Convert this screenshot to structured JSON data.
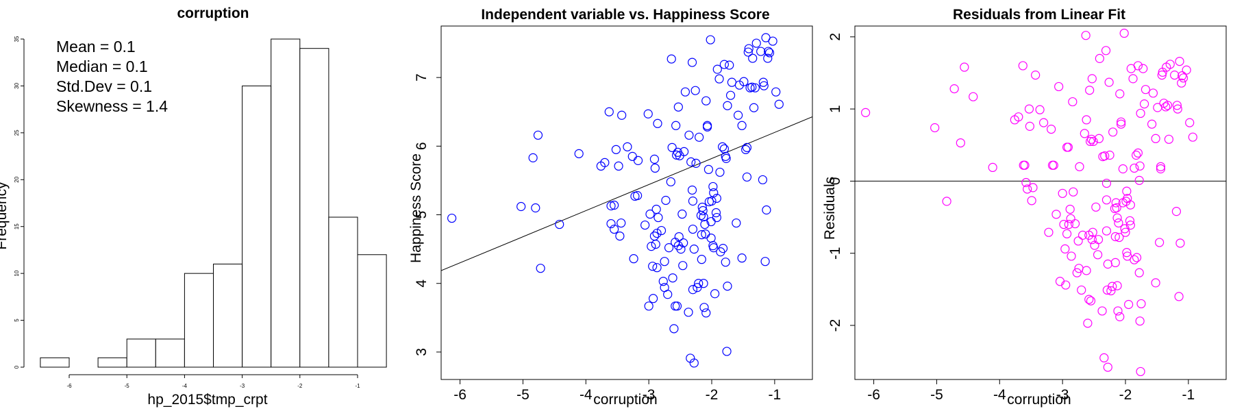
{
  "chart_data": [
    {
      "type": "bar",
      "title": "corruption",
      "xlabel": "hp_2015$tmp_crpt",
      "ylabel": "Frequency",
      "bin_edges": [
        -6.5,
        -6.0,
        -5.5,
        -5.0,
        -4.5,
        -4.0,
        -3.5,
        -3.0,
        -2.5,
        -2.0,
        -1.5,
        -1.0,
        -0.5
      ],
      "values": [
        1,
        0,
        1,
        3,
        3,
        10,
        11,
        30,
        35,
        34,
        16,
        12
      ],
      "xticks": [
        -6,
        -5,
        -4,
        -3,
        -2,
        -1
      ],
      "xtick_labels": [
        "-6",
        "-5",
        "-4",
        "-3",
        "-2",
        "-1"
      ],
      "yticks": [
        0,
        5,
        10,
        15,
        20,
        25,
        30,
        35
      ],
      "ytick_labels": [
        "0",
        "5",
        "10",
        "15",
        "20",
        "25",
        "30",
        "35"
      ],
      "ylim": [
        0,
        35
      ],
      "annotations": [
        "Mean = 0.1",
        "Median = 0.1",
        "Std.Dev = 0.1",
        "Skewness = 1.4"
      ]
    },
    {
      "type": "scatter",
      "title": "Independent variable vs. Happiness Score",
      "xlabel": "corruption",
      "ylabel": "Happiness Score",
      "xlim": [
        -6.3,
        -0.4
      ],
      "ylim": [
        2.6,
        7.75
      ],
      "xticks": [
        -6,
        -5,
        -4,
        -3,
        -2,
        -1
      ],
      "xtick_labels": [
        "-6",
        "-5",
        "-4",
        "-3",
        "-2",
        "-1"
      ],
      "yticks": [
        3,
        4,
        5,
        6,
        7
      ],
      "ytick_labels": [
        "3",
        "4",
        "5",
        "6",
        "7"
      ],
      "marker_color": "#0000ff",
      "fit_line": {
        "intercept": 6.58,
        "slope": 0.38
      },
      "points": [
        [
          -6.13,
          4.95
        ],
        [
          -5.03,
          5.12
        ],
        [
          -4.84,
          5.83
        ],
        [
          -4.8,
          5.1
        ],
        [
          -4.76,
          6.16
        ],
        [
          -4.72,
          4.22
        ],
        [
          -4.42,
          4.86
        ],
        [
          -4.11,
          5.89
        ],
        [
          -3.76,
          5.71
        ],
        [
          -3.7,
          5.76
        ],
        [
          -3.63,
          6.5
        ],
        [
          -3.6,
          5.13
        ],
        [
          -3.6,
          4.87
        ],
        [
          -3.55,
          5.14
        ],
        [
          -3.55,
          4.79
        ],
        [
          -3.52,
          5.95
        ],
        [
          -3.48,
          5.71
        ],
        [
          -3.46,
          4.69
        ],
        [
          -3.44,
          4.88
        ],
        [
          -3.43,
          6.45
        ],
        [
          -3.34,
          5.99
        ],
        [
          -3.26,
          5.85
        ],
        [
          -3.24,
          4.36
        ],
        [
          -3.22,
          5.27
        ],
        [
          -3.18,
          5.28
        ],
        [
          -3.17,
          5.79
        ],
        [
          -3.06,
          4.85
        ],
        [
          -3.01,
          6.47
        ],
        [
          -3.0,
          3.67
        ],
        [
          -2.98,
          5.01
        ],
        [
          -2.96,
          4.54
        ],
        [
          -2.94,
          4.25
        ],
        [
          -2.93,
          3.78
        ],
        [
          -2.91,
          5.81
        ],
        [
          -2.91,
          4.69
        ],
        [
          -2.9,
          5.68
        ],
        [
          -2.89,
          4.57
        ],
        [
          -2.88,
          5.08
        ],
        [
          -2.87,
          4.73
        ],
        [
          -2.87,
          4.23
        ],
        [
          -2.86,
          6.33
        ],
        [
          -2.85,
          4.96
        ],
        [
          -2.8,
          4.77
        ],
        [
          -2.77,
          4.03
        ],
        [
          -2.75,
          4.32
        ],
        [
          -2.75,
          3.94
        ],
        [
          -2.73,
          5.21
        ],
        [
          -2.7,
          3.84
        ],
        [
          -2.68,
          4.52
        ],
        [
          -2.65,
          5.48
        ],
        [
          -2.64,
          7.27
        ],
        [
          -2.63,
          5.98
        ],
        [
          -2.62,
          4.08
        ],
        [
          -2.6,
          3.34
        ],
        [
          -2.58,
          4.6
        ],
        [
          -2.58,
          3.67
        ],
        [
          -2.57,
          6.3
        ],
        [
          -2.56,
          5.87
        ],
        [
          -2.55,
          3.67
        ],
        [
          -2.54,
          5.91
        ],
        [
          -2.53,
          6.57
        ],
        [
          -2.53,
          4.55
        ],
        [
          -2.52,
          4.68
        ],
        [
          -2.51,
          5.86
        ],
        [
          -2.49,
          4.5
        ],
        [
          -2.47,
          5.01
        ],
        [
          -2.46,
          4.26
        ],
        [
          -2.45,
          4.59
        ],
        [
          -2.44,
          5.92
        ],
        [
          -2.42,
          6.79
        ],
        [
          -2.37,
          3.58
        ],
        [
          -2.36,
          6.16
        ],
        [
          -2.34,
          2.91
        ],
        [
          -2.33,
          5.77
        ],
        [
          -2.31,
          7.22
        ],
        [
          -2.31,
          5.36
        ],
        [
          -2.3,
          5.2
        ],
        [
          -2.3,
          4.79
        ],
        [
          -2.3,
          3.91
        ],
        [
          -2.28,
          2.84
        ],
        [
          -2.28,
          4.5
        ],
        [
          -2.26,
          6.81
        ],
        [
          -2.25,
          5.75
        ],
        [
          -2.23,
          3.94
        ],
        [
          -2.21,
          4.0
        ],
        [
          -2.2,
          6.13
        ],
        [
          -2.17,
          4.99
        ],
        [
          -2.16,
          4.71
        ],
        [
          -2.16,
          4.35
        ],
        [
          -2.15,
          5.11
        ],
        [
          -2.14,
          5.06
        ],
        [
          -2.13,
          4.97
        ],
        [
          -2.13,
          4.0
        ],
        [
          -2.12,
          3.65
        ],
        [
          -2.11,
          4.86
        ],
        [
          -2.1,
          4.72
        ],
        [
          -2.09,
          6.66
        ],
        [
          -2.09,
          3.57
        ],
        [
          -2.07,
          6.28
        ],
        [
          -2.07,
          6.3
        ],
        [
          -2.05,
          5.66
        ],
        [
          -2.04,
          5.19
        ],
        [
          -2.02,
          7.55
        ],
        [
          -2.01,
          4.9
        ],
        [
          -2.01,
          4.66
        ],
        [
          -2.0,
          5.2
        ],
        [
          -1.98,
          5.41
        ],
        [
          -1.98,
          4.55
        ],
        [
          -1.97,
          4.52
        ],
        [
          -1.97,
          5.32
        ],
        [
          -1.95,
          3.85
        ],
        [
          -1.93,
          5.03
        ],
        [
          -1.92,
          5.24
        ],
        [
          -1.92,
          4.96
        ],
        [
          -1.91,
          7.12
        ],
        [
          -1.88,
          6.98
        ],
        [
          -1.87,
          5.62
        ],
        [
          -1.86,
          4.46
        ],
        [
          -1.83,
          5.99
        ],
        [
          -1.82,
          4.51
        ],
        [
          -1.8,
          5.96
        ],
        [
          -1.8,
          7.19
        ],
        [
          -1.78,
          5.85
        ],
        [
          -1.78,
          4.31
        ],
        [
          -1.77,
          5.82
        ],
        [
          -1.76,
          3.01
        ],
        [
          -1.75,
          6.59
        ],
        [
          -1.75,
          3.96
        ],
        [
          -1.72,
          7.18
        ],
        [
          -1.7,
          6.74
        ],
        [
          -1.68,
          6.93
        ],
        [
          -1.61,
          4.88
        ],
        [
          -1.58,
          6.45
        ],
        [
          -1.56,
          6.89
        ],
        [
          -1.52,
          6.3
        ],
        [
          -1.52,
          4.37
        ],
        [
          -1.49,
          6.94
        ],
        [
          -1.46,
          5.95
        ],
        [
          -1.44,
          5.98
        ],
        [
          -1.44,
          5.55
        ],
        [
          -1.42,
          7.37
        ],
        [
          -1.41,
          7.42
        ],
        [
          -1.39,
          6.85
        ],
        [
          -1.36,
          6.86
        ],
        [
          -1.35,
          7.28
        ],
        [
          -1.33,
          6.56
        ],
        [
          -1.31,
          6.85
        ],
        [
          -1.29,
          7.5
        ],
        [
          -1.22,
          7.38
        ],
        [
          -1.19,
          5.51
        ],
        [
          -1.18,
          6.93
        ],
        [
          -1.17,
          6.88
        ],
        [
          -1.15,
          4.32
        ],
        [
          -1.14,
          7.58
        ],
        [
          -1.13,
          5.07
        ],
        [
          -1.11,
          7.28
        ],
        [
          -1.1,
          7.38
        ],
        [
          -1.08,
          7.36
        ],
        [
          -1.03,
          7.53
        ],
        [
          -0.98,
          6.79
        ],
        [
          -0.93,
          6.61
        ]
      ]
    },
    {
      "type": "scatter",
      "title": "Residuals from Linear Fit",
      "xlabel": "corruption",
      "ylabel": "Residuals",
      "xlim": [
        -6.3,
        -0.4
      ],
      "ylim": [
        -2.75,
        2.15
      ],
      "xticks": [
        -6,
        -5,
        -4,
        -3,
        -2,
        -1
      ],
      "xtick_labels": [
        "-6",
        "-5",
        "-4",
        "-3",
        "-2",
        "-1"
      ],
      "yticks": [
        -2,
        -1,
        0,
        1,
        2
      ],
      "ytick_labels": [
        "-2",
        "-1",
        "0",
        "1",
        "2"
      ],
      "marker_color": "#ff00ff",
      "reference_line": 0,
      "points": [
        [
          -6.13,
          0.95
        ],
        [
          -5.03,
          0.74
        ],
        [
          -4.84,
          -0.28
        ],
        [
          -4.72,
          1.28
        ],
        [
          -4.62,
          0.53
        ],
        [
          -4.56,
          1.58
        ],
        [
          -4.11,
          0.19
        ],
        [
          -4.42,
          1.17
        ],
        [
          -3.76,
          0.85
        ],
        [
          -3.7,
          0.89
        ],
        [
          -3.63,
          1.6
        ],
        [
          -3.62,
          0.22
        ],
        [
          -3.6,
          0.22
        ],
        [
          -3.58,
          -0.02
        ],
        [
          -3.56,
          -0.11
        ],
        [
          -3.53,
          1.0
        ],
        [
          -3.52,
          0.76
        ],
        [
          -3.49,
          -0.27
        ],
        [
          -3.47,
          -0.09
        ],
        [
          -3.43,
          1.47
        ],
        [
          -3.36,
          0.99
        ],
        [
          -3.3,
          0.81
        ],
        [
          -3.22,
          -0.71
        ],
        [
          -3.18,
          0.72
        ],
        [
          -3.16,
          0.22
        ],
        [
          -3.14,
          0.22
        ],
        [
          -3.1,
          -0.46
        ],
        [
          -3.06,
          1.31
        ],
        [
          -3.04,
          -1.39
        ],
        [
          -3.0,
          -0.17
        ],
        [
          -2.98,
          -0.6
        ],
        [
          -2.96,
          -0.94
        ],
        [
          -2.95,
          -1.44
        ],
        [
          -2.93,
          0.47
        ],
        [
          -2.93,
          -0.73
        ],
        [
          -2.91,
          0.47
        ],
        [
          -2.9,
          -0.6
        ],
        [
          -2.88,
          -0.39
        ],
        [
          -2.87,
          -0.52
        ],
        [
          -2.86,
          -1.04
        ],
        [
          -2.84,
          1.1
        ],
        [
          -2.83,
          -0.15
        ],
        [
          -2.8,
          -0.59
        ],
        [
          -2.77,
          -1.27
        ],
        [
          -2.75,
          -0.83
        ],
        [
          -2.74,
          -1.21
        ],
        [
          -2.73,
          0.2
        ],
        [
          -2.7,
          -1.51
        ],
        [
          -2.68,
          -0.75
        ],
        [
          -2.65,
          0.66
        ],
        [
          -2.63,
          2.02
        ],
        [
          -2.62,
          0.85
        ],
        [
          -2.62,
          -1.24
        ],
        [
          -2.6,
          -1.97
        ],
        [
          -2.58,
          -0.75
        ],
        [
          -2.58,
          -1.64
        ],
        [
          -2.57,
          1.26
        ],
        [
          -2.56,
          0.55
        ],
        [
          -2.55,
          -1.66
        ],
        [
          -2.54,
          0.58
        ],
        [
          -2.53,
          1.42
        ],
        [
          -2.53,
          -0.81
        ],
        [
          -2.52,
          -0.71
        ],
        [
          -2.51,
          0.55
        ],
        [
          -2.49,
          -0.89
        ],
        [
          -2.47,
          -0.36
        ],
        [
          -2.44,
          -1.02
        ],
        [
          -2.43,
          -0.81
        ],
        [
          -2.42,
          0.59
        ],
        [
          -2.41,
          1.7
        ],
        [
          -2.37,
          -1.8
        ],
        [
          -2.36,
          0.34
        ],
        [
          -2.34,
          -2.45
        ],
        [
          -2.33,
          0.35
        ],
        [
          -2.31,
          1.81
        ],
        [
          -2.3,
          -0.03
        ],
        [
          -2.3,
          -0.26
        ],
        [
          -2.3,
          -0.69
        ],
        [
          -2.29,
          -1.51
        ],
        [
          -2.28,
          -2.58
        ],
        [
          -2.28,
          -1.15
        ],
        [
          -2.26,
          1.37
        ],
        [
          -2.25,
          0.36
        ],
        [
          -2.23,
          -1.52
        ],
        [
          -2.21,
          -1.46
        ],
        [
          -2.2,
          0.68
        ],
        [
          -2.17,
          -0.38
        ],
        [
          -2.16,
          -0.77
        ],
        [
          -2.16,
          -1.13
        ],
        [
          -2.15,
          -0.3
        ],
        [
          -2.14,
          -0.37
        ],
        [
          -2.13,
          -0.51
        ],
        [
          -2.13,
          -1.45
        ],
        [
          -2.12,
          -1.8
        ],
        [
          -2.11,
          -0.58
        ],
        [
          -2.1,
          -0.78
        ],
        [
          -2.09,
          1.21
        ],
        [
          -2.09,
          -1.88
        ],
        [
          -2.07,
          0.82
        ],
        [
          -2.07,
          0.79
        ],
        [
          -2.04,
          0.17
        ],
        [
          -2.04,
          -0.3
        ],
        [
          -2.02,
          2.05
        ],
        [
          -2.01,
          -0.66
        ],
        [
          -2.0,
          -0.71
        ],
        [
          -1.99,
          -0.28
        ],
        [
          -1.98,
          -0.14
        ],
        [
          -1.98,
          -0.99
        ],
        [
          -1.97,
          -1.04
        ],
        [
          -1.97,
          -0.24
        ],
        [
          -1.95,
          -1.71
        ],
        [
          -1.93,
          -0.55
        ],
        [
          -1.92,
          -0.33
        ],
        [
          -1.92,
          -0.61
        ],
        [
          -1.91,
          1.56
        ],
        [
          -1.88,
          1.42
        ],
        [
          -1.86,
          0.18
        ],
        [
          -1.86,
          -1.09
        ],
        [
          -1.83,
          0.36
        ],
        [
          -1.82,
          -1.06
        ],
        [
          -1.8,
          0.39
        ],
        [
          -1.8,
          1.6
        ],
        [
          -1.78,
          0.01
        ],
        [
          -1.78,
          -1.27
        ],
        [
          -1.77,
          0.21
        ],
        [
          -1.77,
          -1.94
        ],
        [
          -1.76,
          0.94
        ],
        [
          -1.75,
          -1.7
        ],
        [
          -1.72,
          1.56
        ],
        [
          -1.7,
          1.07
        ],
        [
          -1.68,
          1.27
        ],
        [
          -1.76,
          -2.64
        ],
        [
          -1.58,
          0.79
        ],
        [
          -1.56,
          1.22
        ],
        [
          -1.52,
          0.59
        ],
        [
          -1.52,
          -1.41
        ],
        [
          -1.49,
          1.02
        ],
        [
          -1.46,
          -0.85
        ],
        [
          -1.44,
          0.2
        ],
        [
          -1.44,
          0.17
        ],
        [
          -1.42,
          1.47
        ],
        [
          -1.41,
          1.51
        ],
        [
          -1.39,
          1.08
        ],
        [
          -1.36,
          1.03
        ],
        [
          -1.35,
          1.58
        ],
        [
          -1.33,
          1.05
        ],
        [
          -1.31,
          0.58
        ],
        [
          -1.29,
          1.62
        ],
        [
          -1.22,
          1.47
        ],
        [
          -1.19,
          -0.42
        ],
        [
          -1.18,
          1.05
        ],
        [
          -1.17,
          1.0
        ],
        [
          -1.15,
          -1.6
        ],
        [
          -1.14,
          1.66
        ],
        [
          -1.13,
          -0.86
        ],
        [
          -1.11,
          1.36
        ],
        [
          -1.1,
          1.46
        ],
        [
          -1.08,
          1.43
        ],
        [
          -1.03,
          1.54
        ],
        [
          -0.98,
          0.81
        ],
        [
          -0.93,
          0.61
        ]
      ]
    }
  ]
}
